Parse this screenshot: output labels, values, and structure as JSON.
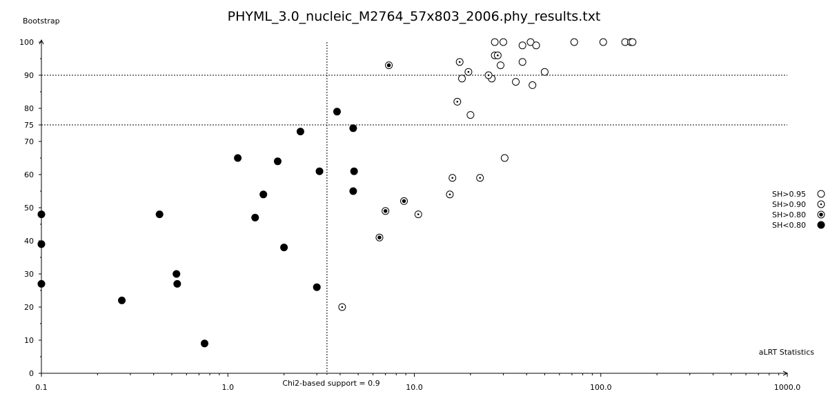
{
  "chart_data": {
    "type": "scatter",
    "title": "PHYML_3.0_nucleic_M2764_57x803_2006.phy_results.txt",
    "xlabel": "aLRT Statistics",
    "ylabel": "Bootstrap",
    "x_scale": "log",
    "xlim": [
      0.1,
      1000.0
    ],
    "ylim": [
      0,
      100
    ],
    "x_ticks": [
      "0.1",
      "1.0",
      "10.0",
      "100.0",
      "1000.0"
    ],
    "x_tick_values": [
      0.1,
      1.0,
      10.0,
      100.0,
      1000.0
    ],
    "y_ticks": [
      "0",
      "10",
      "20",
      "30",
      "40",
      "50",
      "60",
      "70",
      "75",
      "80",
      "90",
      "100"
    ],
    "y_tick_values": [
      0,
      10,
      20,
      30,
      40,
      50,
      60,
      70,
      75,
      80,
      90,
      100
    ],
    "grid": false,
    "reference_lines": {
      "vertical_x": 3.4,
      "vertical_label": "Chi2-based support = 0.9",
      "horizontal_y": [
        75,
        90
      ]
    },
    "legend_position": "right",
    "series": [
      {
        "name": "SH>0.95",
        "marker": "open-circle",
        "points": [
          [
            27,
            100
          ],
          [
            30,
            100
          ],
          [
            42,
            100
          ],
          [
            45,
            99
          ],
          [
            38,
            99
          ],
          [
            72,
            100
          ],
          [
            103,
            100
          ],
          [
            135,
            100
          ],
          [
            145,
            100
          ],
          [
            148,
            100
          ],
          [
            27,
            96
          ],
          [
            38,
            94
          ],
          [
            29,
            93
          ],
          [
            50,
            91
          ],
          [
            18,
            89
          ],
          [
            26,
            89
          ],
          [
            35,
            88
          ],
          [
            43,
            87
          ],
          [
            20,
            78
          ],
          [
            30.5,
            65
          ]
        ]
      },
      {
        "name": "SH>0.90",
        "marker": "dotted-circle",
        "points": [
          [
            28,
            96
          ],
          [
            17.5,
            94
          ],
          [
            19.5,
            91
          ],
          [
            25,
            90
          ],
          [
            17,
            82
          ],
          [
            16,
            59
          ],
          [
            22.5,
            59
          ],
          [
            15.5,
            54
          ],
          [
            10.5,
            48
          ],
          [
            4.1,
            20
          ]
        ]
      },
      {
        "name": "SH>0.80",
        "marker": "bullseye",
        "points": [
          [
            7.3,
            93
          ],
          [
            8.8,
            52
          ],
          [
            7.0,
            49
          ],
          [
            6.5,
            41
          ]
        ]
      },
      {
        "name": "SH<0.80",
        "marker": "filled-circle",
        "points": [
          [
            3.85,
            79
          ],
          [
            4.7,
            74
          ],
          [
            2.45,
            73
          ],
          [
            1.13,
            65
          ],
          [
            1.85,
            64
          ],
          [
            3.1,
            61
          ],
          [
            4.75,
            61
          ],
          [
            1.55,
            54
          ],
          [
            4.7,
            55
          ],
          [
            0.1,
            48
          ],
          [
            0.43,
            48
          ],
          [
            1.4,
            47
          ],
          [
            0.1,
            39
          ],
          [
            2.0,
            38
          ],
          [
            0.53,
            30
          ],
          [
            0.1,
            27
          ],
          [
            0.535,
            27
          ],
          [
            3.0,
            26
          ],
          [
            0.27,
            22
          ],
          [
            0.75,
            9
          ]
        ]
      }
    ]
  }
}
